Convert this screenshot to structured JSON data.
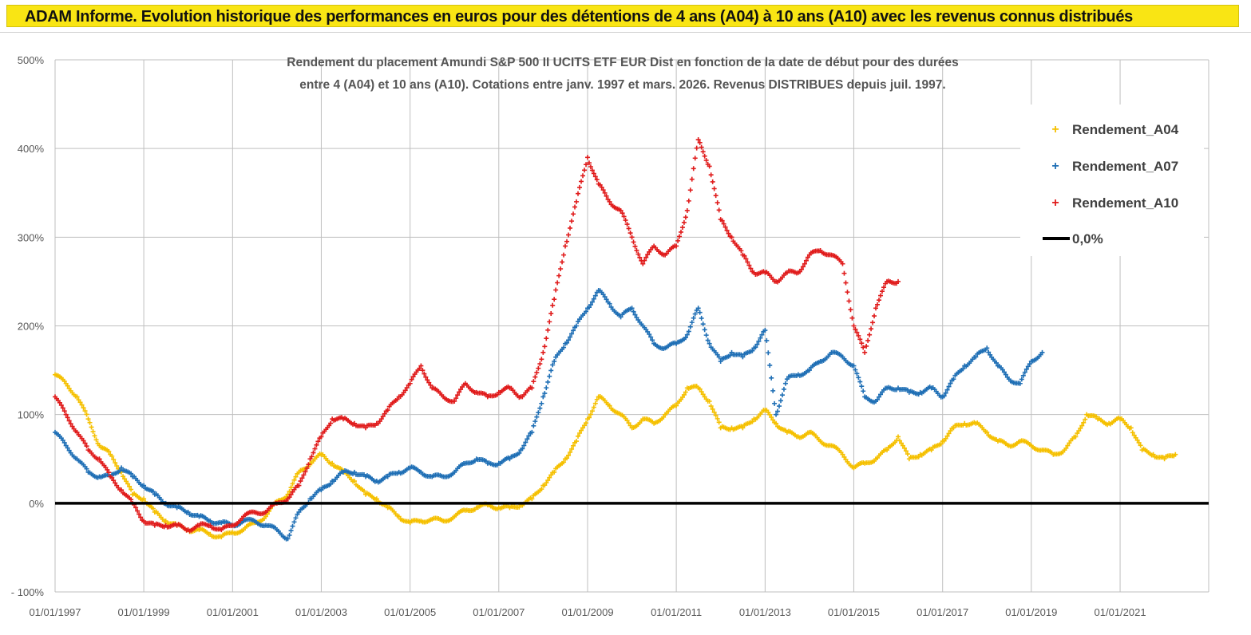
{
  "header": {
    "title": "ADAM Informe. Evolution historique des performances en euros pour des détentions de 4 ans (A04) à 10 ans (A10) avec les revenus connus distribués"
  },
  "colors": {
    "banner": "#f9e514",
    "a04": "#f5c000",
    "a07": "#1f6fb5",
    "a10": "#e01b1b",
    "zero": "#000000",
    "grid": "#bfbfbf"
  },
  "chart_data": {
    "type": "scatter",
    "title_lines": [
      "Rendement du placement Amundi S&P 500 II UCITS ETF EUR Dist en  fonction de la date de début pour des durées",
      "entre 4 (A04) et 10 ans (A10).  Cotations entre janv. 1997 et mars. 2026. Revenus DISTRIBUES depuis juil. 1997."
    ],
    "xlim": [
      "1997-01-01",
      "2022-12-31"
    ],
    "ylim": [
      -1.0,
      5.0
    ],
    "y_ticks": [
      -1.0,
      0.0,
      1.0,
      2.0,
      3.0,
      4.0,
      5.0
    ],
    "y_tick_labels": [
      "- 100%",
      "0%",
      "100%",
      "200%",
      "300%",
      "400%",
      "500%"
    ],
    "x_ticks": [
      "1997-01-01",
      "1999-01-01",
      "2001-01-01",
      "2003-01-01",
      "2005-01-01",
      "2007-01-01",
      "2009-01-01",
      "2011-01-01",
      "2013-01-01",
      "2015-01-01",
      "2017-01-01",
      "2019-01-01",
      "2021-01-01"
    ],
    "x_tick_labels": [
      "01/01/1997",
      "01/01/1999",
      "01/01/2001",
      "01/01/2003",
      "01/01/2005",
      "01/01/2007",
      "01/01/2009",
      "01/01/2011",
      "01/01/2013",
      "01/01/2015",
      "01/01/2017",
      "01/01/2019",
      "01/01/2021"
    ],
    "grid": true,
    "legend_position": "top-right",
    "legend": [
      "Rendement_A04",
      "Rendement_A07",
      "Rendement_A10",
      "0,0%"
    ],
    "series": [
      {
        "name": "Rendement_A04",
        "x": [
          "1997-01",
          "1997-04",
          "1997-07",
          "1997-10",
          "1998-01",
          "1998-04",
          "1998-07",
          "1998-10",
          "1999-01",
          "1999-04",
          "1999-07",
          "1999-10",
          "2000-01",
          "2000-04",
          "2000-07",
          "2000-10",
          "2001-01",
          "2001-04",
          "2001-07",
          "2001-10",
          "2002-01",
          "2002-04",
          "2002-07",
          "2002-10",
          "2003-01",
          "2003-04",
          "2003-07",
          "2003-10",
          "2004-01",
          "2004-04",
          "2004-07",
          "2004-10",
          "2005-01",
          "2005-04",
          "2005-07",
          "2005-10",
          "2006-01",
          "2006-04",
          "2006-07",
          "2006-10",
          "2007-01",
          "2007-04",
          "2007-07",
          "2007-10",
          "2008-01",
          "2008-04",
          "2008-07",
          "2008-10",
          "2009-01",
          "2009-04",
          "2009-07",
          "2009-10",
          "2010-01",
          "2010-04",
          "2010-07",
          "2010-10",
          "2011-01",
          "2011-04",
          "2011-07",
          "2011-10",
          "2012-01",
          "2012-04",
          "2012-07",
          "2012-10",
          "2013-01",
          "2013-04",
          "2013-07",
          "2013-10",
          "2014-01",
          "2014-04",
          "2014-07",
          "2014-10",
          "2015-01",
          "2015-04",
          "2015-07",
          "2015-10",
          "2016-01",
          "2016-04",
          "2016-07",
          "2016-10",
          "2017-01",
          "2017-04",
          "2017-07",
          "2017-10",
          "2018-01",
          "2018-04",
          "2018-07",
          "2018-10",
          "2019-01",
          "2019-04",
          "2019-07",
          "2019-10",
          "2020-01",
          "2020-04",
          "2020-07",
          "2020-10",
          "2021-01",
          "2021-04",
          "2021-07",
          "2021-10",
          "2022-01",
          "2022-04"
        ],
        "values": [
          1.45,
          1.35,
          1.2,
          0.95,
          0.65,
          0.55,
          0.35,
          0.1,
          0.05,
          -0.1,
          -0.2,
          -0.25,
          -0.3,
          -0.3,
          -0.35,
          -0.38,
          -0.33,
          -0.3,
          -0.22,
          -0.15,
          0.02,
          0.1,
          0.35,
          0.45,
          0.55,
          0.45,
          0.35,
          0.25,
          0.1,
          0.05,
          -0.05,
          -0.15,
          -0.22,
          -0.2,
          -0.18,
          -0.2,
          -0.15,
          -0.08,
          -0.05,
          -0.02,
          -0.05,
          -0.05,
          -0.02,
          0.05,
          0.2,
          0.35,
          0.5,
          0.7,
          0.95,
          1.2,
          1.1,
          1.0,
          0.85,
          0.95,
          0.9,
          1.0,
          1.1,
          1.3,
          1.3,
          1.15,
          0.85,
          0.85,
          0.85,
          0.95,
          1.05,
          0.9,
          0.8,
          0.75,
          0.8,
          0.7,
          0.65,
          0.55,
          0.4,
          0.45,
          0.5,
          0.6,
          0.75,
          0.5,
          0.55,
          0.6,
          0.7,
          0.85,
          0.9,
          0.9,
          0.8,
          0.7,
          0.65,
          0.7,
          0.65,
          0.6,
          0.55,
          0.6,
          0.75,
          1.0,
          0.95,
          0.9,
          0.95,
          0.85,
          0.6,
          0.55,
          0.5,
          0.55
        ]
      },
      {
        "name": "Rendement_A07",
        "x": [
          "1997-01",
          "1997-04",
          "1997-07",
          "1997-10",
          "1998-01",
          "1998-04",
          "1998-07",
          "1998-10",
          "1999-01",
          "1999-04",
          "1999-07",
          "1999-10",
          "2000-01",
          "2000-04",
          "2000-07",
          "2000-10",
          "2001-01",
          "2001-04",
          "2001-07",
          "2001-10",
          "2002-01",
          "2002-04",
          "2002-07",
          "2002-10",
          "2003-01",
          "2003-04",
          "2003-07",
          "2003-10",
          "2004-01",
          "2004-04",
          "2004-07",
          "2004-10",
          "2005-01",
          "2005-04",
          "2005-07",
          "2005-10",
          "2006-01",
          "2006-04",
          "2006-07",
          "2006-10",
          "2007-01",
          "2007-04",
          "2007-07",
          "2007-10",
          "2008-01",
          "2008-04",
          "2008-07",
          "2008-10",
          "2009-01",
          "2009-04",
          "2009-07",
          "2009-10",
          "2010-01",
          "2010-04",
          "2010-07",
          "2010-10",
          "2011-01",
          "2011-04",
          "2011-07",
          "2011-10",
          "2012-01",
          "2012-04",
          "2012-07",
          "2012-10",
          "2013-01",
          "2013-04",
          "2013-07",
          "2013-10",
          "2014-01",
          "2014-04",
          "2014-07",
          "2014-10",
          "2015-01",
          "2015-04",
          "2015-07",
          "2015-10",
          "2016-01",
          "2016-04",
          "2016-07",
          "2016-10",
          "2017-01",
          "2017-04",
          "2017-07",
          "2017-10",
          "2018-01",
          "2018-04",
          "2018-07",
          "2018-10",
          "2019-01",
          "2019-04"
        ],
        "values": [
          0.8,
          0.65,
          0.5,
          0.35,
          0.3,
          0.3,
          0.4,
          0.3,
          0.2,
          0.1,
          0.0,
          -0.05,
          -0.1,
          -0.15,
          -0.2,
          -0.22,
          -0.25,
          -0.2,
          -0.2,
          -0.25,
          -0.3,
          -0.4,
          -0.1,
          0.05,
          0.15,
          0.25,
          0.35,
          0.35,
          0.3,
          0.25,
          0.3,
          0.35,
          0.4,
          0.35,
          0.3,
          0.3,
          0.35,
          0.45,
          0.5,
          0.45,
          0.45,
          0.5,
          0.6,
          0.8,
          1.2,
          1.6,
          1.8,
          2.0,
          2.2,
          2.4,
          2.25,
          2.1,
          2.2,
          2.0,
          1.8,
          1.75,
          1.8,
          1.9,
          2.2,
          1.8,
          1.6,
          1.7,
          1.65,
          1.75,
          1.95,
          1.0,
          1.4,
          1.45,
          1.5,
          1.6,
          1.7,
          1.65,
          1.55,
          1.2,
          1.15,
          1.3,
          1.3,
          1.25,
          1.25,
          1.3,
          1.2,
          1.4,
          1.55,
          1.65,
          1.75,
          1.55,
          1.4,
          1.35,
          1.6,
          1.7
        ]
      },
      {
        "name": "Rendement_A10",
        "x": [
          "1997-01",
          "1997-04",
          "1997-07",
          "1997-10",
          "1998-01",
          "1998-04",
          "1998-07",
          "1998-10",
          "1999-01",
          "1999-04",
          "1999-07",
          "1999-10",
          "2000-01",
          "2000-04",
          "2000-07",
          "2000-10",
          "2001-01",
          "2001-04",
          "2001-07",
          "2001-10",
          "2002-01",
          "2002-04",
          "2002-07",
          "2002-10",
          "2003-01",
          "2003-04",
          "2003-07",
          "2003-10",
          "2004-01",
          "2004-04",
          "2004-07",
          "2004-10",
          "2005-01",
          "2005-04",
          "2005-07",
          "2005-10",
          "2006-01",
          "2006-04",
          "2006-07",
          "2006-10",
          "2007-01",
          "2007-04",
          "2007-07",
          "2007-10",
          "2008-01",
          "2008-04",
          "2008-07",
          "2008-10",
          "2009-01",
          "2009-04",
          "2009-07",
          "2009-10",
          "2010-01",
          "2010-04",
          "2010-07",
          "2010-10",
          "2011-01",
          "2011-04",
          "2011-07",
          "2011-10",
          "2012-01",
          "2012-04",
          "2012-07",
          "2012-10",
          "2013-01",
          "2013-04",
          "2013-07",
          "2013-10",
          "2014-01",
          "2014-04",
          "2014-07",
          "2014-10",
          "2015-01",
          "2015-04",
          "2015-07",
          "2015-10",
          "2016-01"
        ],
        "values": [
          1.2,
          1.0,
          0.8,
          0.6,
          0.5,
          0.3,
          0.15,
          0.0,
          -0.2,
          -0.25,
          -0.25,
          -0.25,
          -0.3,
          -0.25,
          -0.25,
          -0.3,
          -0.25,
          -0.15,
          -0.1,
          -0.1,
          0.0,
          0.05,
          0.2,
          0.5,
          0.75,
          0.95,
          0.95,
          0.9,
          0.85,
          0.9,
          1.05,
          1.2,
          1.35,
          1.55,
          1.3,
          1.2,
          1.15,
          1.35,
          1.25,
          1.2,
          1.25,
          1.3,
          1.2,
          1.3,
          1.7,
          2.3,
          2.9,
          3.4,
          3.9,
          3.6,
          3.4,
          3.3,
          3.0,
          2.7,
          2.9,
          2.8,
          2.9,
          3.3,
          4.1,
          3.8,
          3.2,
          3.0,
          2.8,
          2.6,
          2.6,
          2.5,
          2.6,
          2.6,
          2.8,
          2.85,
          2.8,
          2.7,
          2.0,
          1.7,
          2.2,
          2.5,
          2.5
        ]
      },
      {
        "name": "0,0%",
        "x": [
          "1997-01-01",
          "2022-12-31"
        ],
        "values": [
          0,
          0
        ]
      }
    ]
  }
}
